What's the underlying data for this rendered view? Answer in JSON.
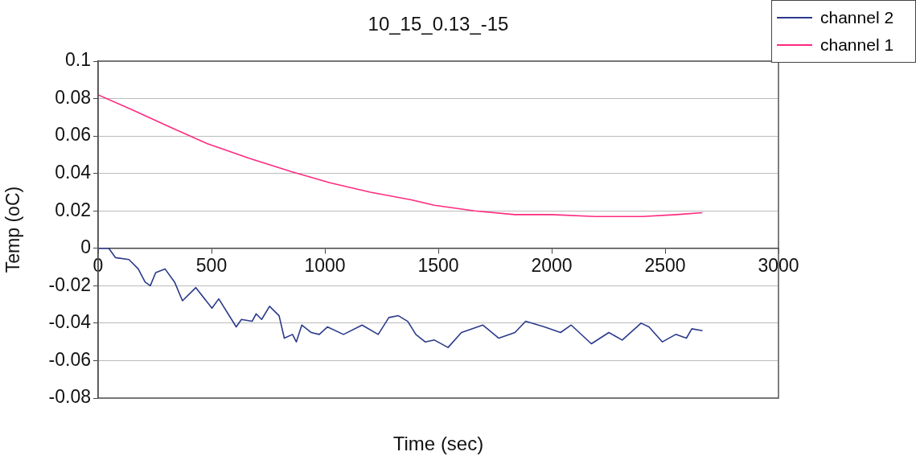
{
  "chart_data": {
    "type": "line",
    "title": "10_15_0.13_-15",
    "xlabel": "Time (sec)",
    "ylabel": "Temp (oC)",
    "xlim": [
      0,
      3000
    ],
    "xticks": [
      0,
      500,
      1000,
      1500,
      2000,
      2500,
      3000
    ],
    "ylim": [
      -0.08,
      0.1
    ],
    "yticks": [
      -0.08,
      -0.06,
      -0.04,
      -0.02,
      0,
      0.02,
      0.04,
      0.06,
      0.08,
      0.1
    ],
    "grid": "y",
    "legend": "top right",
    "marker": "none",
    "line_style": "solid",
    "series": [
      {
        "name": "channel 2",
        "color": "#2b3a8c",
        "x": [
          0,
          47,
          77,
          136,
          177,
          207,
          230,
          254,
          295,
          337,
          372,
          431,
          502,
          532,
          609,
          632,
          679,
          697,
          721,
          756,
          798,
          821,
          857,
          874,
          898,
          940,
          975,
          1011,
          1082,
          1164,
          1235,
          1282,
          1324,
          1365,
          1401,
          1442,
          1483,
          1543,
          1602,
          1696,
          1767,
          1838,
          1885,
          1968,
          2039,
          2086,
          2175,
          2252,
          2311,
          2394,
          2429,
          2488,
          2547,
          2594,
          2618,
          2665
        ],
        "values": [
          0.0,
          0.0,
          -0.005,
          -0.006,
          -0.011,
          -0.018,
          -0.02,
          -0.013,
          -0.011,
          -0.018,
          -0.028,
          -0.021,
          -0.032,
          -0.027,
          -0.042,
          -0.038,
          -0.039,
          -0.035,
          -0.038,
          -0.031,
          -0.036,
          -0.048,
          -0.046,
          -0.05,
          -0.041,
          -0.045,
          -0.046,
          -0.042,
          -0.046,
          -0.041,
          -0.046,
          -0.037,
          -0.036,
          -0.039,
          -0.046,
          -0.05,
          -0.049,
          -0.053,
          -0.045,
          -0.041,
          -0.048,
          -0.045,
          -0.039,
          -0.042,
          -0.045,
          -0.041,
          -0.051,
          -0.045,
          -0.049,
          -0.04,
          -0.042,
          -0.05,
          -0.046,
          -0.048,
          -0.043,
          -0.044
        ]
      },
      {
        "name": "channel 1",
        "color": "#ff2a7f",
        "x": [
          0,
          150,
          313,
          480,
          668,
          850,
          1022,
          1200,
          1377,
          1483,
          1660,
          1838,
          2000,
          2193,
          2400,
          2550,
          2664
        ],
        "values": [
          0.082,
          0.074,
          0.065,
          0.056,
          0.048,
          0.041,
          0.035,
          0.03,
          0.026,
          0.023,
          0.02,
          0.018,
          0.018,
          0.017,
          0.017,
          0.018,
          0.019
        ]
      }
    ]
  }
}
